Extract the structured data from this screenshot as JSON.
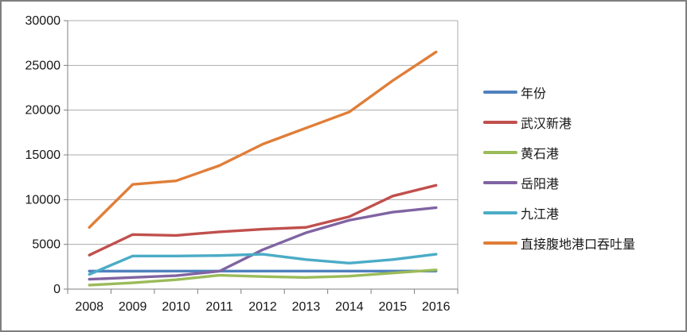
{
  "chart_data": {
    "type": "line",
    "title": "",
    "xlabel": "",
    "ylabel": "",
    "categories": [
      "2008",
      "2009",
      "2010",
      "2011",
      "2012",
      "2013",
      "2014",
      "2015",
      "2016"
    ],
    "y_axis": {
      "min": 0,
      "max": 30000,
      "step": 5000,
      "tick_labels": [
        "0",
        "5000",
        "10000",
        "15000",
        "20000",
        "25000",
        "30000"
      ]
    },
    "grid": true,
    "legend_position": "right",
    "series": [
      {
        "name": "年份",
        "color": "#4F81BD",
        "values": [
          2008,
          2009,
          2010,
          2011,
          2012,
          2013,
          2014,
          2015,
          2016
        ]
      },
      {
        "name": "武汉新港",
        "color": "#C0504D",
        "values": [
          3800,
          6100,
          6000,
          6400,
          6700,
          6900,
          8100,
          10400,
          11600
        ]
      },
      {
        "name": "黄石港",
        "color": "#9BBB59",
        "values": [
          450,
          700,
          1050,
          1550,
          1400,
          1300,
          1450,
          1800,
          2150
        ]
      },
      {
        "name": "岳阳港",
        "color": "#8064A2",
        "values": [
          1100,
          1300,
          1500,
          2000,
          4400,
          6300,
          7700,
          8600,
          9100
        ]
      },
      {
        "name": "九江港",
        "color": "#4BACC6",
        "values": [
          1650,
          3700,
          3700,
          3750,
          3900,
          3300,
          2900,
          3300,
          3900
        ]
      },
      {
        "name": "直接腹地港口吞吐量",
        "color": "#E07E38",
        "values": [
          6900,
          11700,
          12100,
          13800,
          16200,
          18000,
          19800,
          23300,
          26500
        ]
      }
    ]
  },
  "colors": {
    "gridline": "#ABABAB",
    "axis": "#7F7F7F",
    "frame_border": "#7F7F7F",
    "background": "#FFFFFF",
    "text": "#161616"
  }
}
